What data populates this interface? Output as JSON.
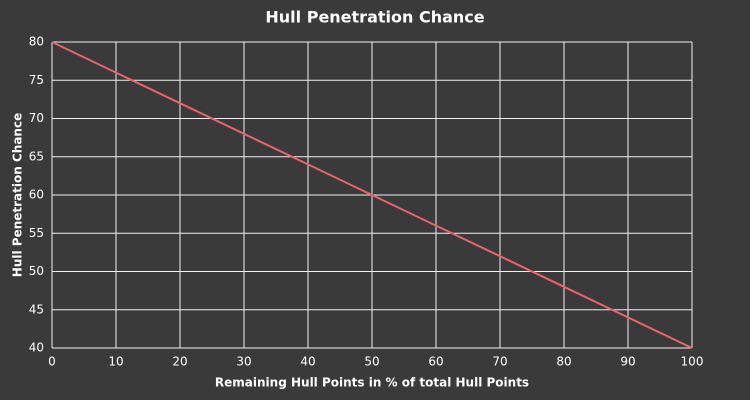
{
  "chart_data": {
    "type": "line",
    "title": "Hull Penetration Chance",
    "x_label": "Remaining Hull Points in % of total Hull Points",
    "y_label": "Hull Penetration Chance",
    "x": [
      0,
      10,
      20,
      30,
      40,
      50,
      60,
      70,
      80,
      90,
      100
    ],
    "series": [
      {
        "color": "#e8646a",
        "values": [
          80,
          76,
          72,
          68,
          64,
          60,
          56,
          52,
          48,
          44,
          40
        ]
      }
    ],
    "xlim": [
      0,
      100
    ],
    "xticks": [
      0,
      10,
      20,
      30,
      40,
      50,
      60,
      70,
      80,
      90,
      100
    ],
    "ylim": [
      40,
      80
    ],
    "yticks": [
      40,
      45,
      50,
      55,
      60,
      65,
      70,
      75,
      80
    ],
    "grid": true
  }
}
